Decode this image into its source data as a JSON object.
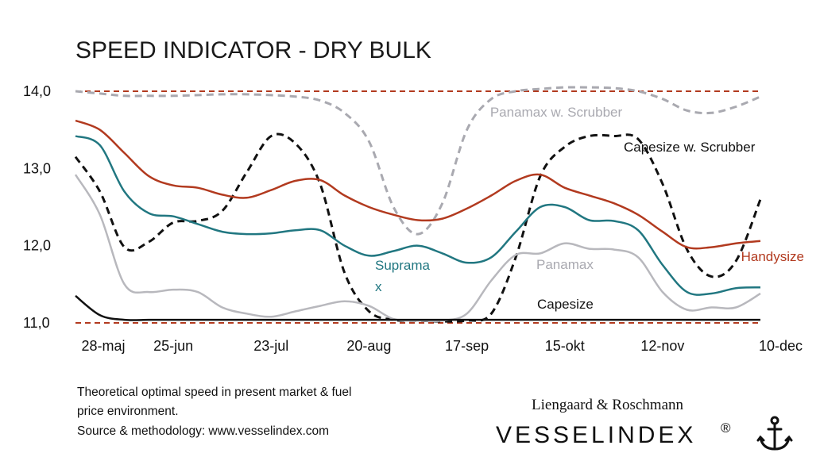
{
  "chart_data": {
    "type": "line",
    "title": "SPEED INDICATOR - DRY BULK",
    "xlabel": "",
    "ylabel": "",
    "ylim": [
      11.0,
      14.0
    ],
    "yticks": [
      "14,0",
      "13,0",
      "12,0",
      "11,0"
    ],
    "xticks": [
      "28-maj",
      "25-jun",
      "23-jul",
      "20-aug",
      "17-sep",
      "15-okt",
      "12-nov",
      "10-dec"
    ],
    "xlim": [
      0,
      28
    ],
    "reference_lines": [
      14.0,
      11.0
    ],
    "grid": false,
    "series": [
      {
        "name": "Panamax w. Scrubber",
        "color": "#a9a9b0",
        "dash": "dashed",
        "points": [
          [
            0,
            14.0
          ],
          [
            1,
            13.97
          ],
          [
            2,
            13.94
          ],
          [
            3,
            13.94
          ],
          [
            4,
            13.94
          ],
          [
            5,
            13.95
          ],
          [
            6,
            13.96
          ],
          [
            7,
            13.96
          ],
          [
            8,
            13.95
          ],
          [
            9,
            13.93
          ],
          [
            10,
            13.88
          ],
          [
            11,
            13.72
          ],
          [
            12,
            13.35
          ],
          [
            13,
            12.5
          ],
          [
            14,
            12.15
          ],
          [
            15,
            12.55
          ],
          [
            16,
            13.5
          ],
          [
            17,
            13.9
          ],
          [
            18,
            14.0
          ],
          [
            19,
            14.03
          ],
          [
            20,
            14.05
          ],
          [
            21,
            14.05
          ],
          [
            22,
            14.04
          ],
          [
            23,
            14.0
          ],
          [
            24,
            13.9
          ],
          [
            25,
            13.75
          ],
          [
            26,
            13.72
          ],
          [
            27,
            13.8
          ],
          [
            28,
            13.93
          ]
        ]
      },
      {
        "name": "Capesize w. Scrubber",
        "color": "#111111",
        "dash": "dashed",
        "points": [
          [
            0,
            13.15
          ],
          [
            1,
            12.7
          ],
          [
            2,
            11.98
          ],
          [
            3,
            12.05
          ],
          [
            4,
            12.3
          ],
          [
            5,
            12.32
          ],
          [
            6,
            12.45
          ],
          [
            7,
            12.95
          ],
          [
            8,
            13.42
          ],
          [
            9,
            13.32
          ],
          [
            10,
            12.8
          ],
          [
            11,
            11.65
          ],
          [
            12,
            11.15
          ],
          [
            13,
            11.04
          ],
          [
            14,
            11.03
          ],
          [
            15,
            11.02
          ],
          [
            16,
            11.03
          ],
          [
            17,
            11.12
          ],
          [
            18,
            11.85
          ],
          [
            19,
            12.9
          ],
          [
            20,
            13.28
          ],
          [
            21,
            13.42
          ],
          [
            22,
            13.42
          ],
          [
            23,
            13.38
          ],
          [
            24,
            12.8
          ],
          [
            25,
            11.95
          ],
          [
            26,
            11.6
          ],
          [
            27,
            11.8
          ],
          [
            28,
            12.6
          ]
        ]
      },
      {
        "name": "Handysize",
        "color": "#b23a1f",
        "dash": "solid",
        "points": [
          [
            0,
            13.62
          ],
          [
            1,
            13.5
          ],
          [
            2,
            13.2
          ],
          [
            3,
            12.9
          ],
          [
            4,
            12.78
          ],
          [
            5,
            12.75
          ],
          [
            6,
            12.66
          ],
          [
            7,
            12.62
          ],
          [
            8,
            12.72
          ],
          [
            9,
            12.84
          ],
          [
            10,
            12.85
          ],
          [
            11,
            12.65
          ],
          [
            12,
            12.5
          ],
          [
            13,
            12.4
          ],
          [
            14,
            12.33
          ],
          [
            15,
            12.35
          ],
          [
            16,
            12.48
          ],
          [
            17,
            12.65
          ],
          [
            18,
            12.84
          ],
          [
            19,
            12.92
          ],
          [
            20,
            12.75
          ],
          [
            21,
            12.65
          ],
          [
            22,
            12.55
          ],
          [
            23,
            12.4
          ],
          [
            24,
            12.18
          ],
          [
            25,
            11.98
          ],
          [
            26,
            11.98
          ],
          [
            27,
            12.03
          ],
          [
            28,
            12.06
          ]
        ]
      },
      {
        "name": "Suprama\nx",
        "color": "#217781",
        "dash": "solid",
        "points": [
          [
            0,
            13.42
          ],
          [
            1,
            13.3
          ],
          [
            2,
            12.7
          ],
          [
            3,
            12.42
          ],
          [
            4,
            12.38
          ],
          [
            5,
            12.28
          ],
          [
            6,
            12.18
          ],
          [
            7,
            12.15
          ],
          [
            8,
            12.16
          ],
          [
            9,
            12.2
          ],
          [
            10,
            12.2
          ],
          [
            11,
            12.0
          ],
          [
            12,
            11.87
          ],
          [
            13,
            11.93
          ],
          [
            14,
            12.0
          ],
          [
            15,
            11.9
          ],
          [
            16,
            11.78
          ],
          [
            17,
            11.85
          ],
          [
            18,
            12.18
          ],
          [
            19,
            12.5
          ],
          [
            20,
            12.5
          ],
          [
            21,
            12.33
          ],
          [
            22,
            12.32
          ],
          [
            23,
            12.2
          ],
          [
            24,
            11.75
          ],
          [
            25,
            11.4
          ],
          [
            26,
            11.38
          ],
          [
            27,
            11.45
          ],
          [
            28,
            11.46
          ]
        ]
      },
      {
        "name": "Panamax",
        "color": "#b8b8bd",
        "dash": "solid",
        "points": [
          [
            0,
            12.92
          ],
          [
            1,
            12.4
          ],
          [
            2,
            11.5
          ],
          [
            3,
            11.4
          ],
          [
            4,
            11.43
          ],
          [
            5,
            11.4
          ],
          [
            6,
            11.2
          ],
          [
            7,
            11.12
          ],
          [
            8,
            11.08
          ],
          [
            9,
            11.15
          ],
          [
            10,
            11.22
          ],
          [
            11,
            11.28
          ],
          [
            12,
            11.22
          ],
          [
            13,
            11.05
          ],
          [
            14,
            11.03
          ],
          [
            15,
            11.03
          ],
          [
            16,
            11.12
          ],
          [
            17,
            11.55
          ],
          [
            18,
            11.88
          ],
          [
            19,
            11.9
          ],
          [
            20,
            12.03
          ],
          [
            21,
            11.96
          ],
          [
            22,
            11.95
          ],
          [
            23,
            11.85
          ],
          [
            24,
            11.4
          ],
          [
            25,
            11.17
          ],
          [
            26,
            11.2
          ],
          [
            27,
            11.2
          ],
          [
            28,
            11.38
          ]
        ]
      },
      {
        "name": "Capesize",
        "color": "#111111",
        "dash": "solid",
        "points": [
          [
            0,
            11.35
          ],
          [
            1,
            11.1
          ],
          [
            2,
            11.04
          ],
          [
            3,
            11.04
          ],
          [
            4,
            11.04
          ],
          [
            5,
            11.04
          ],
          [
            6,
            11.04
          ],
          [
            7,
            11.04
          ],
          [
            8,
            11.04
          ],
          [
            9,
            11.04
          ],
          [
            10,
            11.04
          ],
          [
            11,
            11.04
          ],
          [
            12,
            11.04
          ],
          [
            13,
            11.04
          ],
          [
            14,
            11.04
          ],
          [
            15,
            11.04
          ],
          [
            16,
            11.04
          ],
          [
            17,
            11.04
          ],
          [
            18,
            11.04
          ],
          [
            19,
            11.04
          ],
          [
            20,
            11.04
          ],
          [
            21,
            11.04
          ],
          [
            22,
            11.04
          ],
          [
            23,
            11.04
          ],
          [
            24,
            11.04
          ],
          [
            25,
            11.04
          ],
          [
            26,
            11.04
          ],
          [
            27,
            11.04
          ],
          [
            28,
            11.04
          ]
        ]
      }
    ]
  },
  "footnote": {
    "line1": "Theoretical optimal speed in present market & fuel",
    "line2": "price environment.",
    "line3": "Source & methodology: www.vesselindex.com"
  },
  "brand": {
    "top": "Liengaard & Roschmann",
    "main": "VESSELINDEX",
    "reg": "®",
    "icon": "anchor-icon"
  },
  "colors": {
    "reference_line": "#b23a1f"
  }
}
